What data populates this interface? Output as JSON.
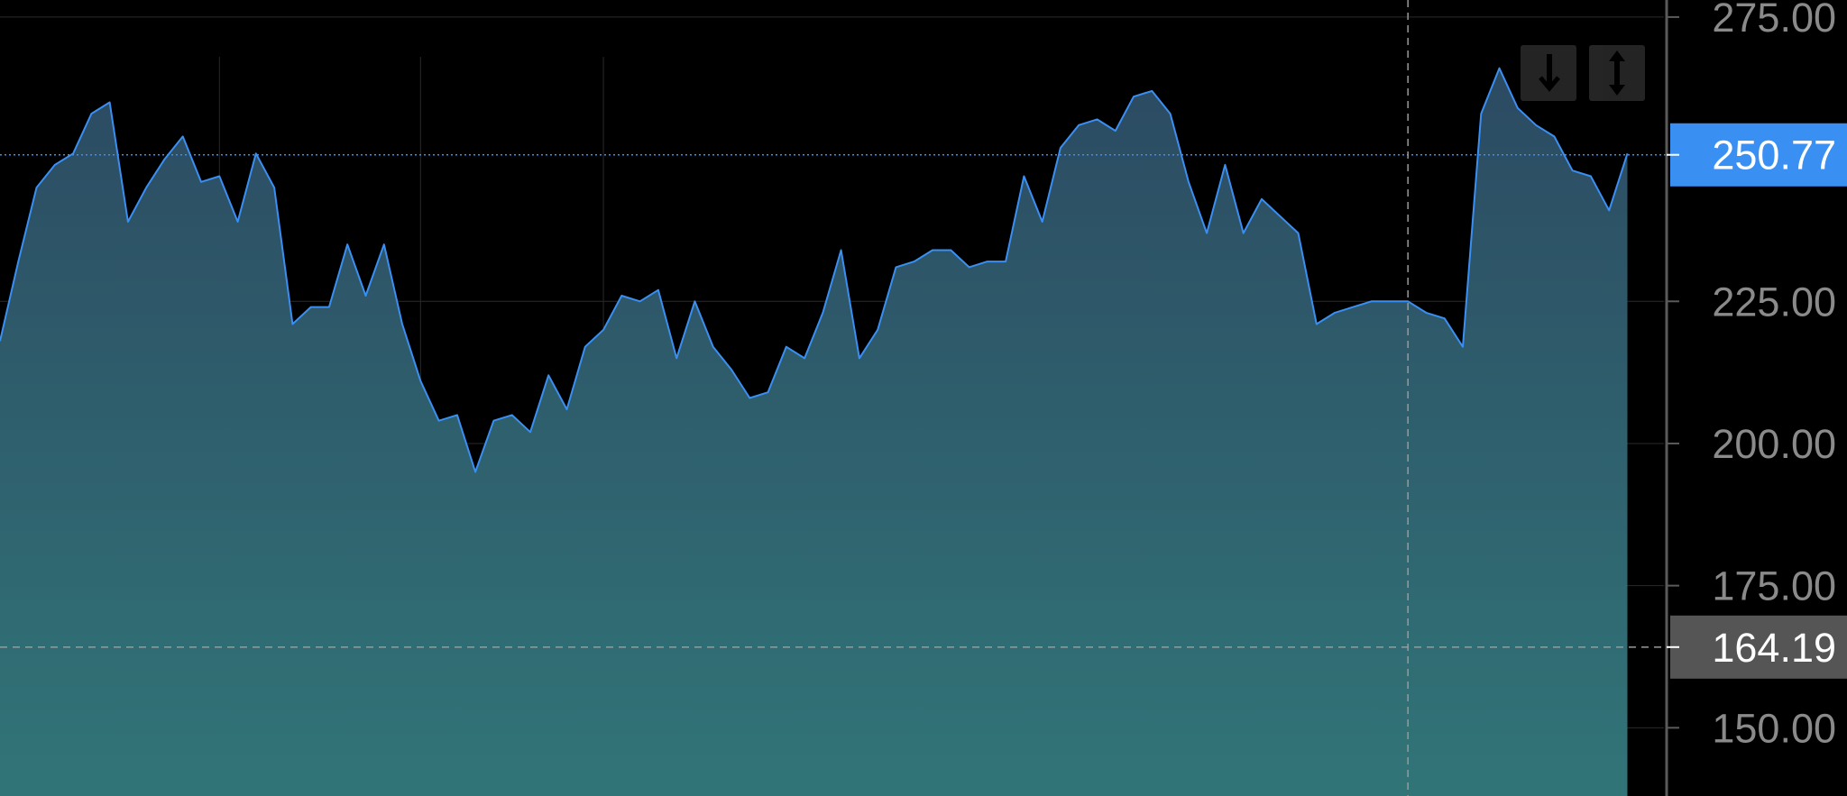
{
  "chart_data": {
    "type": "area",
    "x": [
      1,
      2,
      3,
      4,
      5,
      6,
      7,
      8,
      9,
      10,
      11,
      12,
      13,
      14,
      15,
      16,
      17,
      18,
      19,
      20,
      21,
      22,
      23,
      24,
      25,
      26,
      27,
      28,
      29,
      30,
      31,
      32,
      33,
      34,
      35,
      36,
      37,
      38,
      39,
      40,
      41,
      42,
      43,
      44,
      45,
      46,
      47,
      48,
      49,
      50,
      51,
      52,
      53,
      54,
      55,
      56,
      57,
      58,
      59,
      60,
      61,
      62,
      63,
      64,
      65,
      66,
      67,
      68,
      69,
      70,
      71,
      72,
      73,
      74,
      75,
      76,
      77,
      78,
      79,
      80,
      81,
      82,
      83,
      84,
      85,
      86,
      87,
      88,
      89,
      90,
      91,
      92
    ],
    "series": [
      {
        "values": [
          218,
          232,
          245,
          249,
          251,
          258,
          260,
          239,
          245,
          250,
          254,
          246,
          247,
          239,
          251,
          245,
          221,
          224,
          224,
          235,
          226,
          235,
          221,
          211,
          204,
          205,
          195,
          204,
          205,
          202,
          212,
          206,
          217,
          220,
          226,
          225,
          227,
          215,
          225,
          217,
          213,
          208,
          209,
          217,
          215,
          223,
          234,
          215,
          220,
          231,
          232,
          234,
          234,
          231,
          232,
          232,
          247,
          239,
          252,
          256,
          257,
          255,
          261,
          262,
          258,
          246,
          237,
          249,
          237,
          243,
          240,
          237,
          221,
          223,
          224,
          225,
          225,
          225,
          223,
          222,
          217,
          258,
          266,
          259,
          256,
          254,
          248,
          247,
          241,
          251,
          null,
          null
        ],
        "color": "#3a8ff3"
      }
    ],
    "ylim": [
      138,
      278
    ],
    "yticks": [
      "275.00",
      "225.00",
      "200.00",
      "175.00",
      "150.00"
    ],
    "grid": true,
    "last_price": {
      "value": 250.77,
      "label": "250.77",
      "color": "#3a8ff3"
    },
    "crosshair_price": {
      "value": 164.19,
      "label": "164.19",
      "color": "#555555"
    }
  },
  "theme": {
    "background": "#000000",
    "line": "#3a8ff3",
    "fill_top": "#2c4a62",
    "fill_bottom": "#317578",
    "grid": "#2a2a2a",
    "axis_text": "#8a8a8a"
  },
  "toolbar": {
    "buttons": [
      {
        "icon": "scroll-to-realtime-icon"
      },
      {
        "icon": "auto-scale-icon"
      }
    ]
  }
}
